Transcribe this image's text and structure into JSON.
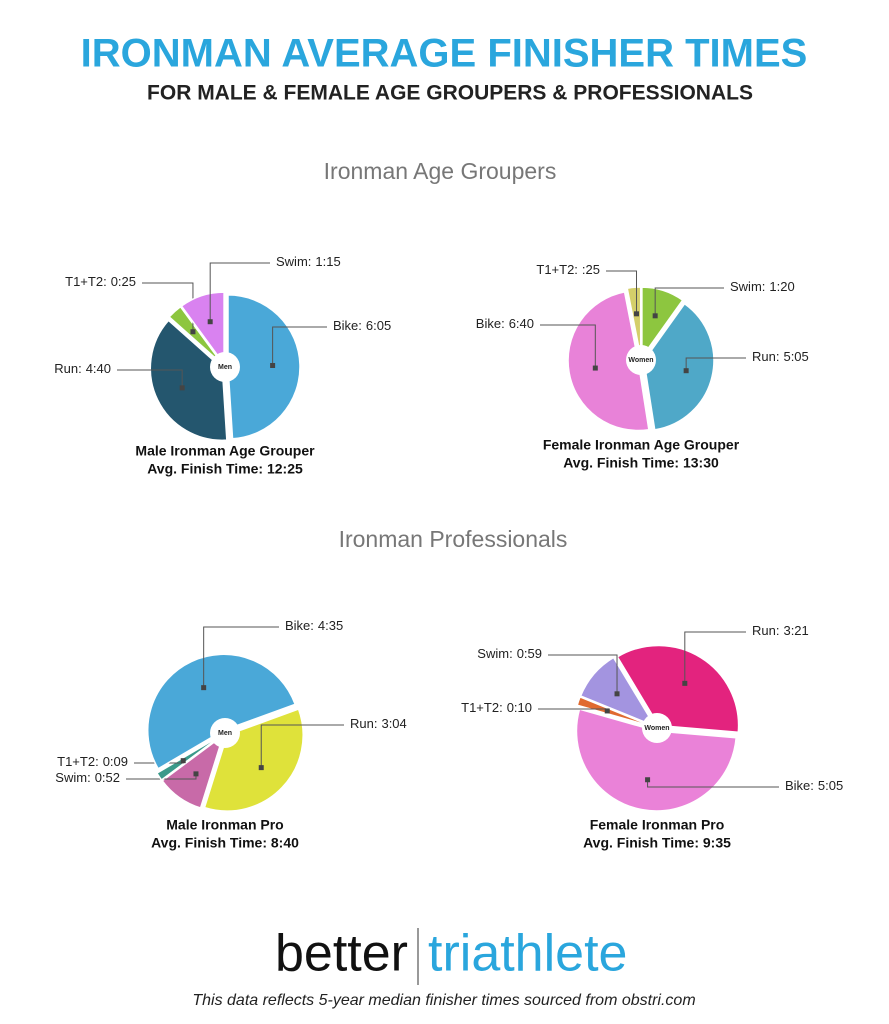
{
  "header": {
    "title": "IRONMAN AVERAGE FINISHER TIMES",
    "subtitle": "FOR MALE & FEMALE AGE GROUPERS & PROFESSIONALS"
  },
  "sections": [
    "Ironman Age Groupers",
    "Ironman Professionals"
  ],
  "chart_data": [
    {
      "type": "pie",
      "title": "Male Ironman Age Grouper",
      "subtitle": "Avg. Finish Time: 12:25",
      "center_label": "Men",
      "categories": [
        "Bike:",
        "Run:",
        "T1+T2:",
        "Swim:"
      ],
      "values": [
        365,
        280,
        25,
        75
      ],
      "value_labels": [
        "6:05",
        "4:40",
        "0:25",
        "1:15"
      ],
      "colors": [
        "#4aa8d8",
        "#24566e",
        "#8dc63f",
        "#d982f0"
      ]
    },
    {
      "type": "pie",
      "title": "Female Ironman Age Grouper",
      "subtitle": "Avg. Finish Time: 13:30",
      "center_label": "Women",
      "categories": [
        "Swim:",
        "Run:",
        "Bike:",
        "T1+T2:"
      ],
      "values": [
        80,
        305,
        400,
        25
      ],
      "value_labels": [
        "1:20",
        "5:05",
        "6:40",
        ":25"
      ],
      "colors": [
        "#8dc63f",
        "#4fa8c8",
        "#e882d8",
        "#d4cf6a"
      ]
    },
    {
      "type": "pie",
      "title": "Male Ironman Pro",
      "subtitle": "Avg. Finish Time: 8:40",
      "center_label": "Men",
      "categories": [
        "Run:",
        "Swim:",
        "T1+T2:",
        "Bike:"
      ],
      "values": [
        184,
        52,
        9,
        275
      ],
      "value_labels": [
        "3:04",
        "0:52",
        "0:09",
        "4:35"
      ],
      "colors": [
        "#dfe23a",
        "#c86aa8",
        "#3a9a8a",
        "#4aa8d8"
      ]
    },
    {
      "type": "pie",
      "title": "Female Ironman Pro",
      "subtitle": "Avg. Finish Time: 9:35",
      "center_label": "Women",
      "categories": [
        "Run:",
        "Bike:",
        "T1+T2:",
        "Swim:"
      ],
      "values": [
        201,
        305,
        10,
        59
      ],
      "value_labels": [
        "3:21",
        "5:05",
        "0:10",
        "0:59"
      ],
      "colors": [
        "#e3237e",
        "#ea82d8",
        "#e06a30",
        "#a394e0"
      ]
    }
  ],
  "logo": {
    "left": "better",
    "right": "triathlete"
  },
  "footer": "This data reflects 5-year median finisher times sourced from obstri.com"
}
